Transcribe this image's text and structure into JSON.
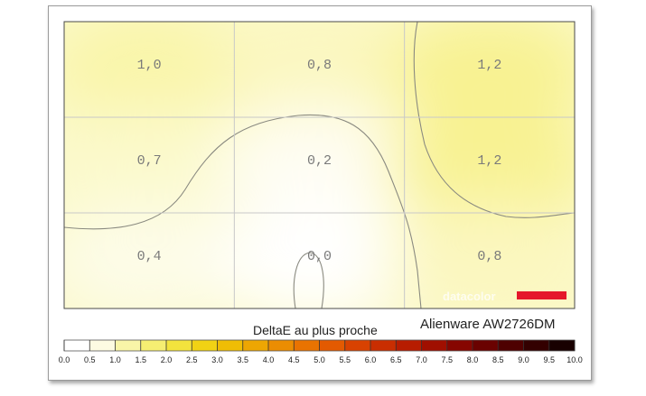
{
  "chart_data": {
    "type": "heatmap",
    "title": "Alienware AW2726DM",
    "legend_title": "DeltaE au plus proche",
    "brand": "datacolor",
    "colors": {
      "brand_red": "#e5172b",
      "grid": "#c8c8c8",
      "contour": "#8a8a80"
    },
    "rows": 3,
    "cols": 3,
    "values": [
      [
        1.0,
        0.8,
        1.2
      ],
      [
        0.7,
        0.2,
        1.2
      ],
      [
        0.4,
        0.0,
        0.8
      ]
    ],
    "labels": [
      [
        "1,0",
        "0,8",
        "1,2"
      ],
      [
        "0,7",
        "0,2",
        "1,2"
      ],
      [
        "0,4",
        "0,0",
        "0,8"
      ]
    ],
    "contour_levels": [
      0.25,
      1.0
    ],
    "scale": {
      "min": 0.0,
      "max": 10.0,
      "step": 0.5,
      "tick_labels": [
        "0.0",
        "0.5",
        "1.0",
        "1.5",
        "2.0",
        "2.5",
        "3.0",
        "3.5",
        "4.0",
        "4.5",
        "5.0",
        "5.5",
        "6.0",
        "6.5",
        "7.0",
        "7.5",
        "8.0",
        "8.5",
        "9.0",
        "9.5",
        "10.0"
      ],
      "colors": [
        "#ffffff",
        "#fdfbe2",
        "#f9f5a8",
        "#f6ee72",
        "#f3e33d",
        "#f1d214",
        "#efbd05",
        "#eda603",
        "#eb8d02",
        "#e97301",
        "#e35a01",
        "#d84201",
        "#c92e01",
        "#b71c00",
        "#a00f00",
        "#860600",
        "#6a0200",
        "#4e0000",
        "#330000",
        "#180000"
      ]
    }
  }
}
